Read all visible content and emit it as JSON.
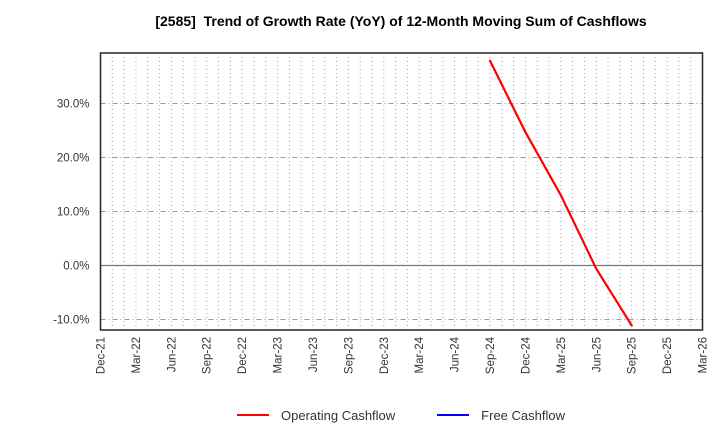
{
  "title": "[2585]  Trend of Growth Rate (YoY) of 12-Month Moving Sum of Cashflows",
  "colors": {
    "operating_cashflow": "#ff0000",
    "free_cashflow": "#0000ff",
    "grid_minor": "#a3a3a3",
    "grid_major": "#999999",
    "zero_line": "#787878",
    "frame": "#262626",
    "tick_text": "#333333"
  },
  "chart_data": {
    "type": "line",
    "title": "[2585]  Trend of Growth Rate (YoY) of 12-Month Moving Sum of Cashflows",
    "ylabel": "",
    "xlabel": "",
    "ylim": [
      -11.94,
      39.35
    ],
    "grid": "on",
    "legend_position": "bottom-center",
    "x_axis": {
      "months_total": 51,
      "tick_interval_months": 3,
      "minor_gridline_interval_months": 1,
      "tick_labels": [
        "Dec-21",
        "Mar-22",
        "Jun-22",
        "Sep-22",
        "Dec-22",
        "Mar-23",
        "Jun-23",
        "Sep-23",
        "Dec-23",
        "Mar-24",
        "Jun-24",
        "Sep-24",
        "Dec-24",
        "Mar-25",
        "Jun-25",
        "Sep-25",
        "Dec-25",
        "Mar-26"
      ]
    },
    "y_axis": {
      "unit": "%",
      "tick_values": [
        30,
        20,
        10,
        0,
        -10
      ],
      "tick_labels": [
        "30.0%",
        "20.0%",
        "10.0%",
        "0.0%",
        "-10.0%"
      ]
    },
    "series": [
      {
        "name": "Operating Cashflow",
        "color": "#ff0000",
        "points": [
          {
            "x_label": "Sep-24",
            "month_index": 33,
            "value": 37.9
          },
          {
            "x_label": "Dec-24",
            "month_index": 36,
            "value": 24.7
          },
          {
            "x_label": "Mar-25",
            "month_index": 39,
            "value": 13.0
          },
          {
            "x_label": "Jun-25",
            "month_index": 42,
            "value": -0.6
          },
          {
            "x_label": "Sep-25",
            "month_index": 45,
            "value": -11.1
          }
        ]
      },
      {
        "name": "Free Cashflow",
        "color": "#0000ff",
        "points": []
      }
    ]
  }
}
